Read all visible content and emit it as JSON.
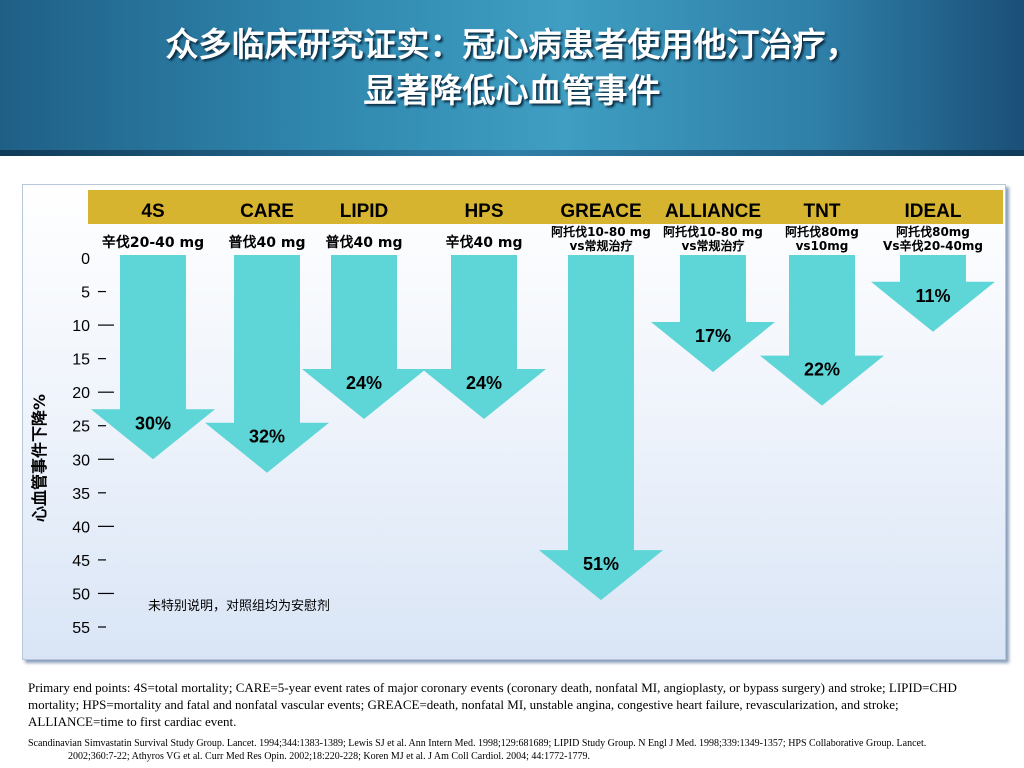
{
  "slide": {
    "title_line1": "众多临床研究证实：冠心病患者使用他汀治疗，",
    "title_line2": "显著降低心血管事件",
    "caption": "Primary end points: 4S=total mortality; CARE=5-year event rates of major coronary events (coronary death, nonfatal MI, angioplasty, or bypass surgery) and stroke; LIPID=CHD mortality; HPS=mortality and fatal and nonfatal vascular events; GREACE=death, nonfatal MI, unstable angina, congestive heart failure, revascularization, and stroke; ALLIANCE=time to first cardiac event.",
    "references": "Scandinavian Simvastatin Survival Study Group. Lancet. 1994;344:1383-1389; Lewis SJ et al. Ann Intern Med. 1998;129:681689; LIPID Study Group. N Engl J Med. 1998;339:1349-1357; HPS Collaborative Group. Lancet. 2002;360:7-22; Athyros VG et al. Curr Med Res Opin. 2002;18:220-228; Koren MJ et al. J Am Coll Cardiol. 2004; 44:1772-1779."
  },
  "chart_data": {
    "type": "bar",
    "orientation": "downward-arrows",
    "categories": [
      "4S",
      "CARE",
      "LIPID",
      "HPS",
      "GREACE",
      "ALLIANCE",
      "TNT",
      "IDEAL"
    ],
    "treatments": [
      [
        "辛伐20-40 mg"
      ],
      [
        "普伐40 mg"
      ],
      [
        "普伐40 mg"
      ],
      [
        "辛伐40 mg"
      ],
      [
        "阿托伐10-80 mg",
        "vs常规治疗"
      ],
      [
        "阿托伐10-80 mg",
        "vs常规治疗"
      ],
      [
        "阿托伐80mg",
        "vs10mg"
      ],
      [
        "阿托伐80mg",
        "Vs辛伐20-40mg"
      ]
    ],
    "values": [
      30,
      32,
      24,
      24,
      51,
      17,
      22,
      11
    ],
    "value_labels": [
      "30%",
      "32%",
      "24%",
      "24%",
      "51%",
      "17%",
      "22%",
      "11%"
    ],
    "ylabel": "心血管事件下降%",
    "ylim": [
      0,
      55
    ],
    "yticks": [
      0,
      5,
      10,
      15,
      20,
      25,
      30,
      35,
      40,
      45,
      50,
      55
    ],
    "note": "未特别说明，对照组均为安慰剂",
    "colors": {
      "arrow": "#5ed5d6",
      "header_band": "#d7b42f",
      "text": "#000000"
    }
  }
}
